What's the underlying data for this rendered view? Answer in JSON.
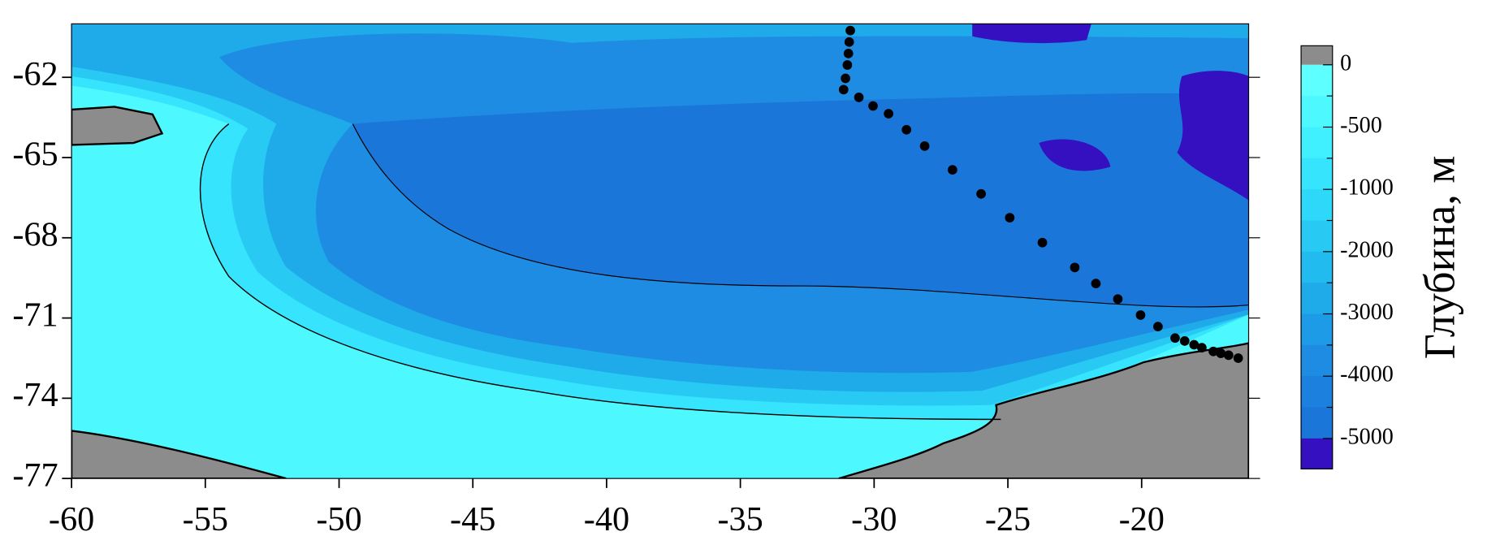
{
  "map": {
    "xlim": [
      -60,
      -16
    ],
    "ylim": [
      -77,
      -60
    ],
    "xticks": [
      -60,
      -55,
      -50,
      -45,
      -40,
      -35,
      -30,
      -25,
      -20
    ],
    "yticks": [
      -62,
      -65,
      -68,
      -71,
      -74,
      -77
    ],
    "stations": {
      "color": "#000000",
      "lon": [
        -30.89,
        -30.93,
        -30.96,
        -31.0,
        -31.07,
        -31.14,
        -30.57,
        -30.04,
        -29.46,
        -28.79,
        -28.11,
        -27.07,
        -26.0,
        -24.93,
        -23.71,
        -22.5,
        -21.71,
        -20.89,
        -20.04,
        -19.39,
        -18.75,
        -18.39,
        -18.04,
        -17.75,
        -17.32,
        -17.04,
        -16.75,
        -16.39
      ],
      "lat": [
        -60.25,
        -60.68,
        -61.11,
        -61.54,
        -62.04,
        -62.46,
        -62.75,
        -63.07,
        -63.36,
        -63.96,
        -64.57,
        -65.46,
        -66.36,
        -67.25,
        -68.18,
        -69.11,
        -69.71,
        -70.29,
        -70.89,
        -71.32,
        -71.75,
        -71.86,
        -72.0,
        -72.11,
        -72.25,
        -72.32,
        -72.39,
        -72.5
      ]
    }
  },
  "colorbar": {
    "label": "Глубина, м",
    "ticks": [
      0,
      -500,
      -1000,
      -2000,
      -3000,
      -4000,
      -5000
    ],
    "land_color": "#8c8c8c",
    "colors": [
      "#5effff",
      "#4ef8ff",
      "#41f0ff",
      "#36e5fd",
      "#2ed8f8",
      "#28caf4",
      "#22bbef",
      "#1fabea",
      "#1e9be6",
      "#1d8ce2",
      "#1c80de",
      "#1b76da"
    ],
    "deep_color": "#3510c0"
  }
}
